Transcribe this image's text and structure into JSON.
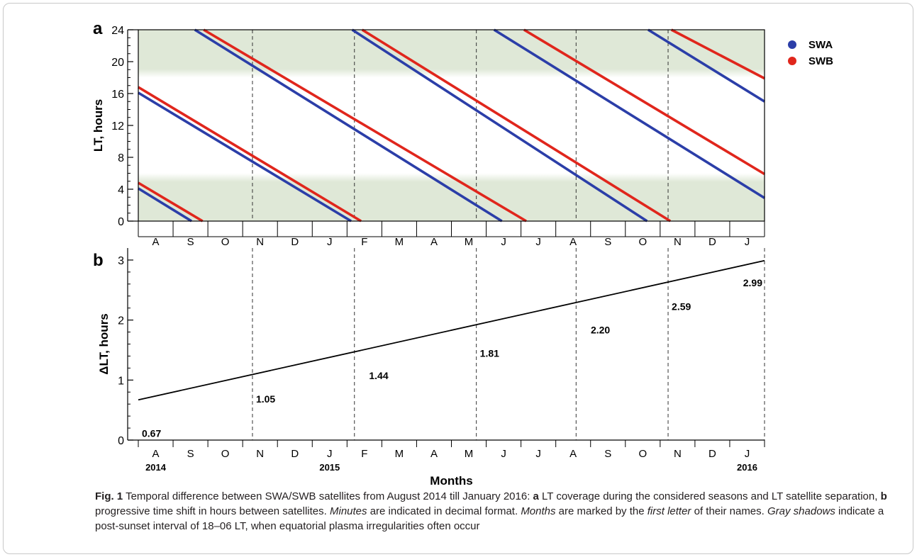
{
  "chart_data": [
    {
      "panel_label": "a",
      "type": "line",
      "ylabel": "LT, hours",
      "ylim": [
        0,
        24
      ],
      "yticks": [
        0,
        4,
        8,
        12,
        16,
        20,
        24
      ],
      "x_range": [
        "2014-07-15",
        "2016-01-31"
      ],
      "shaded_bands_LT": [
        [
          0,
          6
        ],
        [
          18,
          24
        ]
      ],
      "legend_position": "top-right",
      "month_tick_labels": [
        "A",
        "S",
        "O",
        "N",
        "D",
        "J",
        "F",
        "M",
        "A",
        "M",
        "J",
        "J",
        "A",
        "S",
        "O",
        "N",
        "D",
        "J"
      ],
      "grid": "vertical dashed lines every ~2.6 months",
      "series": [
        {
          "name": "SWA",
          "color": "#2b3ea8",
          "segments": [
            [
              [
                "2014-07-15",
                4.1
              ],
              [
                "2014-09-01",
                0.0
              ]
            ],
            [
              [
                "2014-07-15",
                16.1
              ],
              [
                "2015-01-23",
                0.0
              ]
            ],
            [
              [
                "2014-09-04",
                24.0
              ],
              [
                "2015-06-08",
                0.0
              ]
            ],
            [
              [
                "2015-01-24",
                24.0
              ],
              [
                "2015-10-17",
                0.0
              ]
            ],
            [
              [
                "2015-06-01",
                24.0
              ],
              [
                "2016-01-31",
                2.9
              ]
            ],
            [
              [
                "2015-10-18",
                24.0
              ],
              [
                "2016-01-31",
                15.0
              ]
            ]
          ]
        },
        {
          "name": "SWB",
          "color": "#e0261c",
          "segments": [
            [
              [
                "2014-07-15",
                4.8
              ],
              [
                "2014-09-11",
                0.0
              ]
            ],
            [
              [
                "2014-07-15",
                16.8
              ],
              [
                "2015-02-01",
                0.0
              ]
            ],
            [
              [
                "2014-09-12",
                24.0
              ],
              [
                "2015-06-30",
                0.0
              ]
            ],
            [
              [
                "2015-02-02",
                24.0
              ],
              [
                "2015-11-07",
                0.0
              ]
            ],
            [
              [
                "2015-06-28",
                24.0
              ],
              [
                "2016-01-31",
                5.9
              ]
            ],
            [
              [
                "2015-11-08",
                24.0
              ],
              [
                "2016-01-31",
                17.9
              ]
            ]
          ]
        }
      ]
    },
    {
      "panel_label": "b",
      "type": "line",
      "ylabel": "ΔLT, hours",
      "xlabel": "Months",
      "ylim": [
        0,
        3.2
      ],
      "yticks": [
        0,
        1,
        2,
        3
      ],
      "x_range": [
        "2014-07-15",
        "2016-01-31"
      ],
      "month_tick_labels": [
        "A",
        "S",
        "O",
        "N",
        "D",
        "J",
        "F",
        "M",
        "A",
        "M",
        "J",
        "J",
        "A",
        "S",
        "O",
        "N",
        "D",
        "J"
      ],
      "year_labels": [
        {
          "label": "2014",
          "date": "2014-08-15"
        },
        {
          "label": "2015",
          "date": "2015-01-15"
        },
        {
          "label": "2016",
          "date": "2016-01-15"
        }
      ],
      "line": [
        [
          "2014-07-15",
          0.67
        ],
        [
          "2016-01-31",
          2.99
        ]
      ],
      "annotations": [
        {
          "text": "0.67",
          "date": "2014-07-15",
          "value": 0.67
        },
        {
          "text": "1.05",
          "date": "2014-10-26",
          "value": 1.05
        },
        {
          "text": "1.44",
          "date": "2015-02-05",
          "value": 1.44
        },
        {
          "text": "1.81",
          "date": "2015-05-16",
          "value": 1.81
        },
        {
          "text": "2.20",
          "date": "2015-08-24",
          "value": 2.2
        },
        {
          "text": "2.59",
          "date": "2015-11-05",
          "value": 2.59
        },
        {
          "text": "2.99",
          "date": "2016-01-31",
          "value": 2.99
        }
      ]
    }
  ],
  "dashed_line_dates": [
    "2014-10-26",
    "2015-01-26",
    "2015-05-16",
    "2015-08-14",
    "2015-11-05",
    "2016-01-31"
  ],
  "caption": {
    "label": "Fig. 1",
    "segments": [
      {
        "t": "  Temporal difference between SWA/SWB satellites from August 2014 till January 2016: ",
        "s": "n"
      },
      {
        "t": "a",
        "s": "b"
      },
      {
        "t": " LT coverage during the considered seasons and LT satellite separation, ",
        "s": "n"
      },
      {
        "t": "b",
        "s": "b"
      },
      {
        "t": " progressive time shift in hours between satellites. ",
        "s": "n"
      },
      {
        "t": "Minutes",
        "s": "i"
      },
      {
        "t": " are indicated in decimal format. ",
        "s": "n"
      },
      {
        "t": "Months",
        "s": "i"
      },
      {
        "t": " are marked by the ",
        "s": "n"
      },
      {
        "t": "first letter",
        "s": "i"
      },
      {
        "t": " of their names. ",
        "s": "n"
      },
      {
        "t": "Gray shadows",
        "s": "i"
      },
      {
        "t": " indicate a post-sunset interval of 18–06 LT, when equatorial plasma irregularities often occur",
        "s": "n"
      }
    ]
  }
}
